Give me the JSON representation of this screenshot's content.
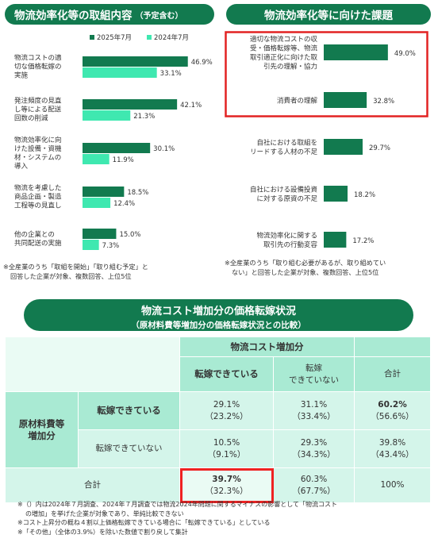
{
  "left_panel": {
    "title": "物流効率化等の取組内容",
    "title_sub": "（予定含む）",
    "note_lines": [
      "※全産業のうち「取組を開始」「取り組む予定」と",
      "回答した企業が対象、複数回答、上位5位"
    ]
  },
  "right_panel": {
    "title": "物流効率化等に向けた課題",
    "note_lines": [
      "※全産業のうち「取り組む必要があるが、取り組めてい",
      "ない」と回答した企業が対象、複数回答、上位5位"
    ]
  },
  "chart_data": [
    {
      "type": "bar",
      "orientation": "horizontal",
      "legend_position": "top",
      "categories": [
        [
          "物流コストの適",
          "切な価格転嫁の",
          "実施"
        ],
        [
          "発注頻度の見直",
          "し等による配送",
          "回数の削減"
        ],
        [
          "物流効率化に向",
          "けた設備・資機",
          "材・システムの",
          "導入"
        ],
        [
          "物流を考慮した",
          "商品企画・製造",
          "工程等の見直し"
        ],
        [
          "他の企業との",
          "共同配送の実施"
        ]
      ],
      "series": [
        {
          "name": "2025年7月",
          "color": "#127a4f",
          "values": [
            46.9,
            42.1,
            30.1,
            18.5,
            15.0
          ],
          "labels": [
            "46.9%",
            "42.1%",
            "30.1%",
            "18.5%",
            "15.0%"
          ]
        },
        {
          "name": "2024年7月",
          "color": "#3fe8b0",
          "values": [
            33.1,
            21.3,
            11.9,
            12.4,
            7.3
          ],
          "labels": [
            "33.1%",
            "21.3%",
            "11.9%",
            "12.4%",
            "7.3%"
          ]
        }
      ]
    },
    {
      "type": "bar",
      "orientation": "horizontal",
      "categories": [
        [
          "適切な物流コストの収",
          "受・価格転嫁等、物流",
          "取引適正化に向けた取",
          "引先の理解・協力"
        ],
        [
          "消費者の理解"
        ],
        [
          "自社における取組を",
          "リードする人材の不足"
        ],
        [
          "自社における設備投資",
          "に対する原資の不足"
        ],
        [
          "物流効率化に関する",
          "取引先の行動変容"
        ]
      ],
      "series": [
        {
          "color": "#127a4f",
          "values": [
            49.0,
            32.8,
            29.7,
            18.2,
            17.2
          ],
          "labels": [
            "49.0%",
            "32.8%",
            "29.7%",
            "18.2%",
            "17.2%"
          ]
        }
      ],
      "highlighted": [
        0,
        1
      ]
    },
    {
      "type": "table",
      "title": "物流コスト増加分の価格転嫁状況",
      "subtitle": "（原材料費等増加分の価格転嫁状況との比較）",
      "col_group": "物流コスト増加分",
      "col_headers": [
        "転嫁できている",
        "転嫁\nできていない",
        "合計"
      ],
      "row_group": "原材料費等\n増加分",
      "row_headers": [
        "転嫁できている",
        "転嫁できていない",
        "合計"
      ],
      "cells": [
        [
          [
            "29.1%",
            "（23.2%）"
          ],
          [
            "31.1%",
            "（33.4%）"
          ],
          [
            "60.2%",
            "（56.6%）"
          ]
        ],
        [
          [
            "10.5%",
            "（9.1%）"
          ],
          [
            "29.3%",
            "（34.3%）"
          ],
          [
            "39.8%",
            "（43.4%）"
          ]
        ],
        [
          [
            "39.7%",
            "（32.3%）"
          ],
          [
            "60.3%",
            "（67.7%）"
          ],
          [
            "100%",
            ""
          ]
        ]
      ]
    }
  ],
  "footnotes": [
    "※（）内は2024年７月調査、2024年７月調査では物流2024年問題に関するマイナスの影響として「物流コスト",
    "の増加」を挙げた企業が対象であり、単純比較できない",
    "※コスト上昇分の概ね４割以上価格転嫁できている場合に「転嫁できている」としている",
    "※「その他」（全体の3.9%）を除いた数値で割り戻して集計"
  ],
  "colors": {
    "primary": "#127a4f",
    "secondary": "#3fe8b0",
    "highlight": "#e22222"
  }
}
